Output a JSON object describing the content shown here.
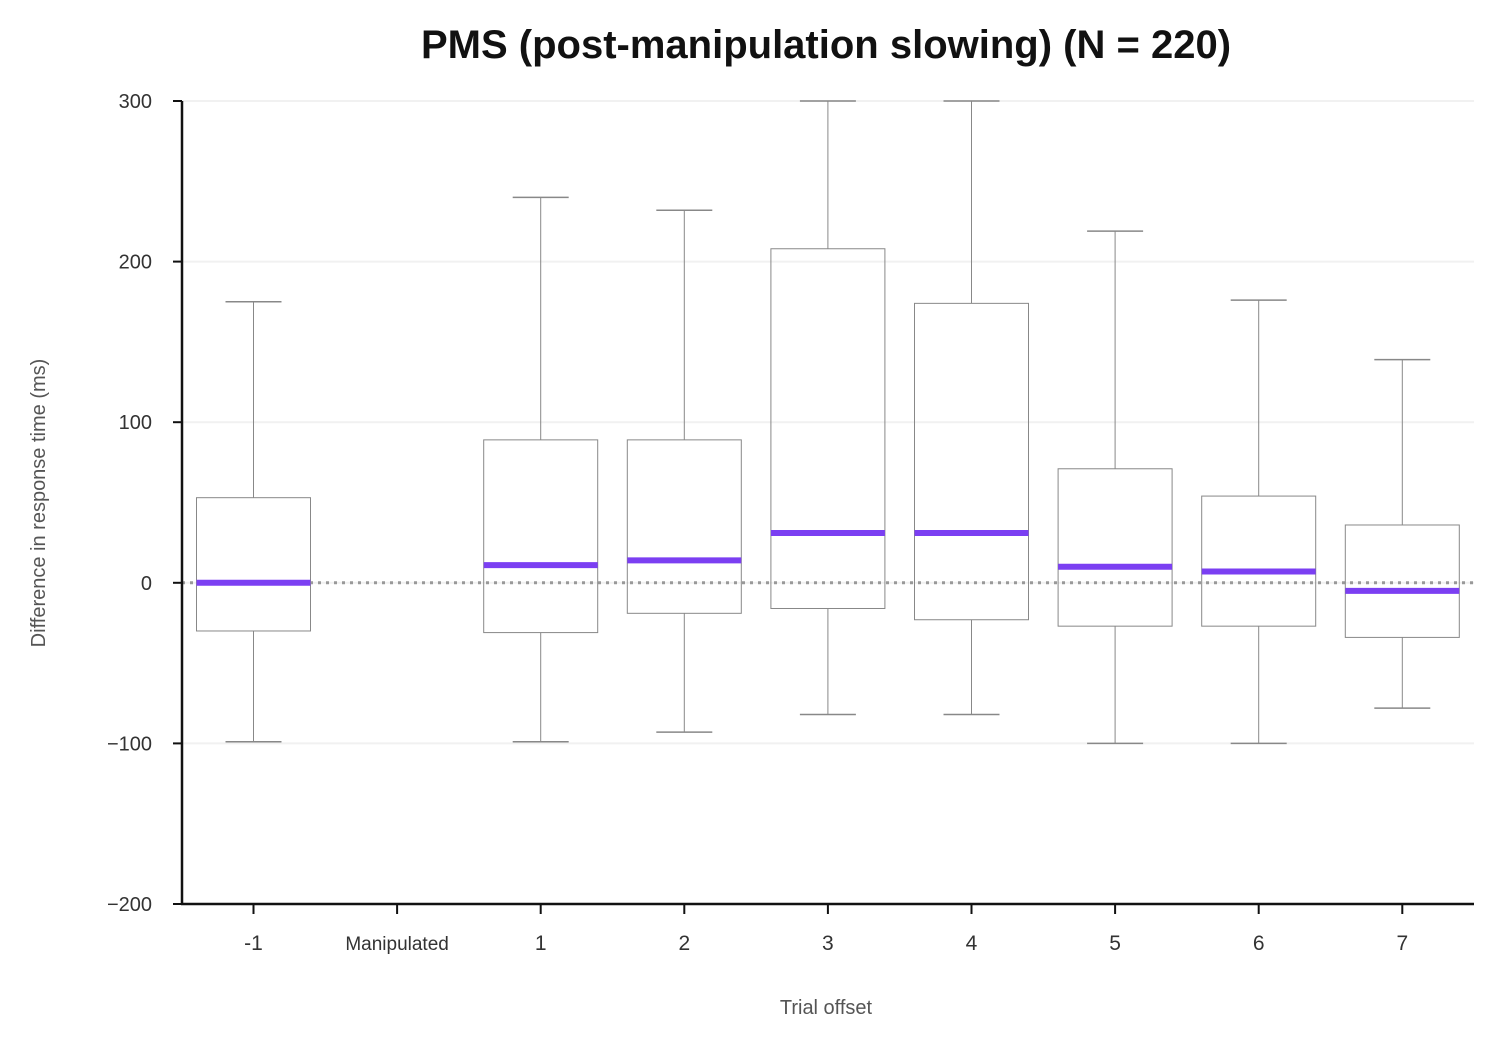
{
  "chart_data": {
    "type": "box",
    "title": "PMS (post-manipulation slowing) (N = 220)",
    "xlabel": "Trial offset",
    "ylabel": "Difference in response time (ms)",
    "ylim": [
      -200,
      300
    ],
    "yticks": [
      300,
      200,
      100,
      0,
      -100,
      -200
    ],
    "ytick_labels": [
      "300",
      "200",
      "100",
      "0",
      "−100",
      "−200"
    ],
    "categories": [
      "-1",
      "Manipulated",
      "1",
      "2",
      "3",
      "4",
      "5",
      "6",
      "7"
    ],
    "boxes": [
      {
        "category": "-1",
        "whisker_low": -99,
        "q1": -30,
        "median": 0,
        "q3": 53,
        "whisker_high": 175
      },
      {
        "category": "Manipulated"
      },
      {
        "category": "1",
        "whisker_low": -99,
        "q1": -31,
        "median": 11,
        "q3": 89,
        "whisker_high": 240
      },
      {
        "category": "2",
        "whisker_low": -93,
        "q1": -19,
        "median": 14,
        "q3": 89,
        "whisker_high": 232
      },
      {
        "category": "3",
        "whisker_low": -82,
        "q1": -16,
        "median": 31,
        "q3": 208,
        "whisker_high": 300
      },
      {
        "category": "4",
        "whisker_low": -82,
        "q1": -23,
        "median": 31,
        "q3": 174,
        "whisker_high": 300
      },
      {
        "category": "5",
        "whisker_low": -100,
        "q1": -27,
        "median": 10,
        "q3": 71,
        "whisker_high": 219
      },
      {
        "category": "6",
        "whisker_low": -100,
        "q1": -27,
        "median": 7,
        "q3": 54,
        "whisker_high": 176
      },
      {
        "category": "7",
        "whisker_low": -78,
        "q1": -34,
        "median": -5,
        "q3": 36,
        "whisker_high": 139
      }
    ],
    "reference_line": 0,
    "grid": true,
    "colors": {
      "median": "#7b3ff2",
      "box": "#888888",
      "axis": "#111111",
      "grid": "#f1f1f1",
      "reference": "#999999"
    }
  }
}
